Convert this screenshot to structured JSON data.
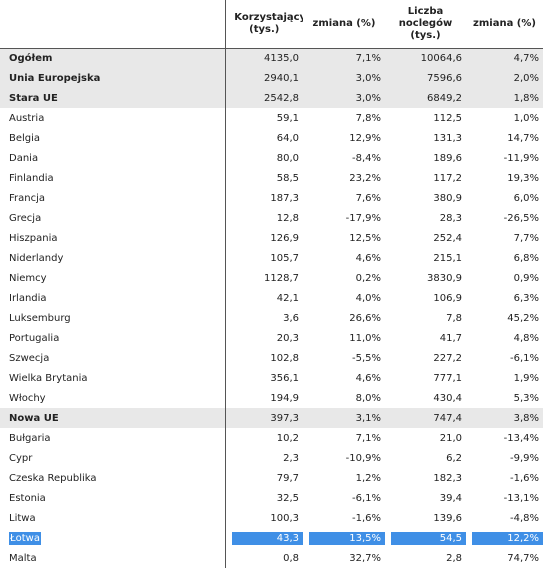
{
  "headers": {
    "country": "",
    "users": "Korzystający (tys.)",
    "users_change": "zmiana (%)",
    "nights": "Liczba noclegów (tys.)",
    "nights_change": "zmiana (%)"
  },
  "rows": [
    {
      "name": "Ogółem",
      "users": "4135,0",
      "users_change": "7,1%",
      "nights": "10064,6",
      "nights_change": "4,7%",
      "group": true
    },
    {
      "name": "Unia Europejska",
      "users": "2940,1",
      "users_change": "3,0%",
      "nights": "7596,6",
      "nights_change": "2,0%",
      "group": true
    },
    {
      "name": "Stara UE",
      "users": "2542,8",
      "users_change": "3,0%",
      "nights": "6849,2",
      "nights_change": "1,8%",
      "group": true
    },
    {
      "name": "Austria",
      "users": "59,1",
      "users_change": "7,8%",
      "nights": "112,5",
      "nights_change": "1,0%"
    },
    {
      "name": "Belgia",
      "users": "64,0",
      "users_change": "12,9%",
      "nights": "131,3",
      "nights_change": "14,7%"
    },
    {
      "name": "Dania",
      "users": "80,0",
      "users_change": "-8,4%",
      "nights": "189,6",
      "nights_change": "-11,9%"
    },
    {
      "name": "Finlandia",
      "users": "58,5",
      "users_change": "23,2%",
      "nights": "117,2",
      "nights_change": "19,3%"
    },
    {
      "name": "Francja",
      "users": "187,3",
      "users_change": "7,6%",
      "nights": "380,9",
      "nights_change": "6,0%"
    },
    {
      "name": "Grecja",
      "users": "12,8",
      "users_change": "-17,9%",
      "nights": "28,3",
      "nights_change": "-26,5%"
    },
    {
      "name": "Hiszpania",
      "users": "126,9",
      "users_change": "12,5%",
      "nights": "252,4",
      "nights_change": "7,7%"
    },
    {
      "name": "Niderlandy",
      "users": "105,7",
      "users_change": "4,6%",
      "nights": "215,1",
      "nights_change": "6,8%"
    },
    {
      "name": "Niemcy",
      "users": "1128,7",
      "users_change": "0,2%",
      "nights": "3830,9",
      "nights_change": "0,9%"
    },
    {
      "name": "Irlandia",
      "users": "42,1",
      "users_change": "4,0%",
      "nights": "106,9",
      "nights_change": "6,3%"
    },
    {
      "name": "Luksemburg",
      "users": "3,6",
      "users_change": "26,6%",
      "nights": "7,8",
      "nights_change": "45,2%"
    },
    {
      "name": "Portugalia",
      "users": "20,3",
      "users_change": "11,0%",
      "nights": "41,7",
      "nights_change": "4,8%"
    },
    {
      "name": "Szwecja",
      "users": "102,8",
      "users_change": "-5,5%",
      "nights": "227,2",
      "nights_change": "-6,1%"
    },
    {
      "name": "Wielka Brytania",
      "users": "356,1",
      "users_change": "4,6%",
      "nights": "777,1",
      "nights_change": "1,9%"
    },
    {
      "name": "Włochy",
      "users": "194,9",
      "users_change": "8,0%",
      "nights": "430,4",
      "nights_change": "5,3%"
    },
    {
      "name": "Nowa UE",
      "users": "397,3",
      "users_change": "3,1%",
      "nights": "747,4",
      "nights_change": "3,8%",
      "group": true
    },
    {
      "name": "Bułgaria",
      "users": "10,2",
      "users_change": "7,1%",
      "nights": "21,0",
      "nights_change": "-13,4%"
    },
    {
      "name": "Cypr",
      "users": "2,3",
      "users_change": "-10,9%",
      "nights": "6,2",
      "nights_change": "-9,9%"
    },
    {
      "name": "Czeska Republika",
      "users": "79,7",
      "users_change": "1,2%",
      "nights": "182,3",
      "nights_change": "-1,6%"
    },
    {
      "name": "Estonia",
      "users": "32,5",
      "users_change": "-6,1%",
      "nights": "39,4",
      "nights_change": "-13,1%"
    },
    {
      "name": "Litwa",
      "users": "100,3",
      "users_change": "-1,6%",
      "nights": "139,6",
      "nights_change": "-4,8%"
    },
    {
      "name": "Łotwa",
      "users": "43,3",
      "users_change": "13,5%",
      "nights": "54,5",
      "nights_change": "12,2%",
      "selected": true
    },
    {
      "name": "Malta",
      "users": "0,8",
      "users_change": "32,7%",
      "nights": "2,8",
      "nights_change": "74,7%"
    }
  ],
  "colors": {
    "group_background": "#e8e8e8",
    "selection": "#3f8fe6"
  }
}
